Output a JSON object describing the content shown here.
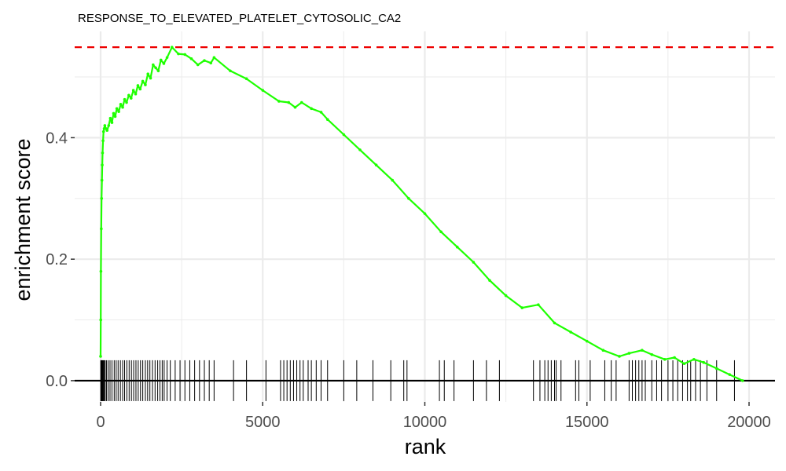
{
  "chart_data": {
    "type": "line",
    "title": "RESPONSE_TO_ELEVATED_PLATELET_CYTOSOLIC_CA2",
    "xlabel": "rank",
    "ylabel": "enrichment score",
    "xlim": [
      -800,
      20800
    ],
    "ylim": [
      -0.035,
      0.575
    ],
    "x_ticks": [
      0,
      5000,
      10000,
      15000,
      20000
    ],
    "x_tick_labels": [
      "0",
      "5000",
      "10000",
      "15000",
      "20000"
    ],
    "y_ticks": [
      0.0,
      0.2,
      0.4
    ],
    "y_tick_labels": [
      "0.0",
      "0.2",
      "0.4"
    ],
    "grid": true,
    "max_enrichment_score": 0.549,
    "colors": {
      "curve": "#1eff00",
      "max_line": "#ee0000",
      "zero_line": "#000000",
      "hits": "#000000",
      "grid": "#ebebeb"
    },
    "series": [
      {
        "x": [
          0,
          5,
          10,
          20,
          30,
          40,
          50,
          60,
          75,
          90,
          110,
          130,
          160,
          200,
          250,
          300,
          350,
          400,
          450,
          500,
          560,
          620,
          680,
          740,
          800,
          870,
          940,
          1010,
          1080,
          1150,
          1220,
          1300,
          1380,
          1460,
          1540,
          1620,
          1700,
          1780,
          1860,
          1950,
          2050,
          2200,
          2400,
          2600,
          2800,
          3000,
          3200,
          3400,
          3500,
          4000,
          4500,
          5000,
          5500,
          5800,
          6000,
          6200,
          6500,
          6800,
          7000,
          7500,
          8000,
          8500,
          9000,
          9500,
          10000,
          10500,
          11000,
          11500,
          12000,
          12500,
          13000,
          13500,
          14000,
          14500,
          15000,
          15500,
          16000,
          16300,
          16700,
          17000,
          17400,
          17700,
          18000,
          18300,
          18600,
          19000,
          19400,
          19800
        ],
        "y": [
          0.04,
          0.1,
          0.18,
          0.25,
          0.3,
          0.33,
          0.355,
          0.375,
          0.395,
          0.41,
          0.415,
          0.42,
          0.415,
          0.412,
          0.42,
          0.432,
          0.425,
          0.44,
          0.435,
          0.448,
          0.443,
          0.455,
          0.45,
          0.463,
          0.458,
          0.47,
          0.465,
          0.478,
          0.472,
          0.486,
          0.48,
          0.493,
          0.487,
          0.505,
          0.498,
          0.52,
          0.515,
          0.51,
          0.528,
          0.522,
          0.532,
          0.549,
          0.538,
          0.537,
          0.53,
          0.52,
          0.527,
          0.523,
          0.532,
          0.51,
          0.497,
          0.478,
          0.46,
          0.458,
          0.45,
          0.458,
          0.448,
          0.442,
          0.43,
          0.405,
          0.38,
          0.355,
          0.33,
          0.3,
          0.275,
          0.245,
          0.22,
          0.195,
          0.165,
          0.14,
          0.12,
          0.125,
          0.095,
          0.08,
          0.065,
          0.05,
          0.04,
          0.045,
          0.05,
          0.043,
          0.035,
          0.038,
          0.028,
          0.035,
          0.03,
          0.02,
          0.01,
          0.0
        ]
      }
    ],
    "hits": [
      5,
      15,
      25,
      40,
      55,
      70,
      90,
      110,
      140,
      180,
      230,
      290,
      350,
      420,
      480,
      540,
      610,
      680,
      740,
      810,
      880,
      950,
      1020,
      1090,
      1160,
      1230,
      1300,
      1380,
      1450,
      1520,
      1600,
      1680,
      1760,
      1830,
      1900,
      1960,
      2050,
      2150,
      2300,
      2450,
      2600,
      2750,
      2900,
      3050,
      3200,
      3350,
      3500,
      4100,
      4500,
      5100,
      5550,
      5650,
      5750,
      5850,
      5950,
      6050,
      6150,
      6250,
      6400,
      6500,
      6650,
      6800,
      7000,
      7500,
      7900,
      8400,
      8950,
      9350,
      9450,
      10450,
      10600,
      10900,
      11500,
      11900,
      12300,
      13350,
      13550,
      13700,
      13800,
      13900,
      14000,
      14050,
      14200,
      14650,
      14750,
      15100,
      15550,
      15750,
      15900,
      16300,
      16400,
      16500,
      16600,
      16700,
      16800,
      17000,
      17150,
      17300,
      17500,
      17650,
      17800,
      17950,
      18100,
      18200,
      18350,
      18500,
      18700,
      19000,
      19550
    ]
  }
}
